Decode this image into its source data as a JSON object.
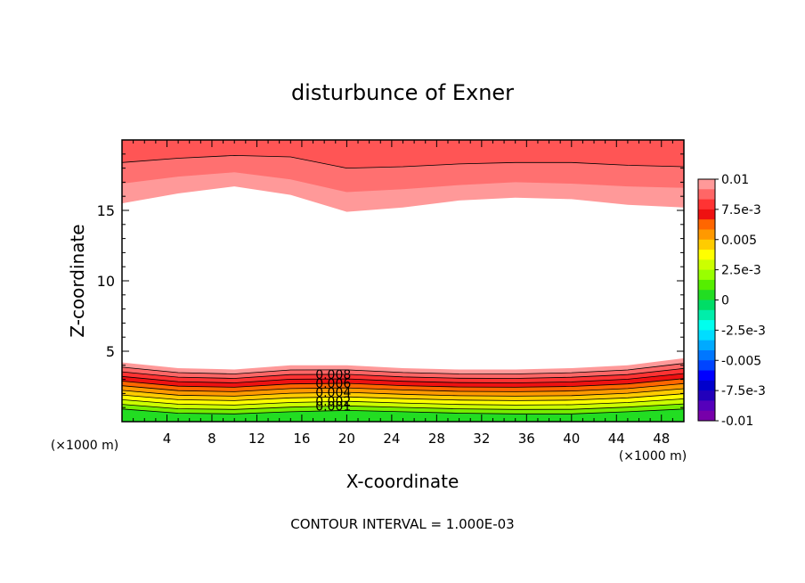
{
  "chart_data": {
    "type": "heatmap",
    "title": "disturbunce of Exner",
    "xlabel": "X-coordinate",
    "ylabel": "Z-coordinate",
    "x_unit": "(×1000 m)",
    "y_unit": "(×1000 m)",
    "xlim": [
      0,
      50
    ],
    "ylim": [
      0,
      20
    ],
    "x_ticks": [
      "4",
      "8",
      "12",
      "16",
      "20",
      "24",
      "28",
      "32",
      "36",
      "40",
      "44",
      "48"
    ],
    "y_ticks": [
      "5",
      "10",
      "15"
    ],
    "footer": "CONTOUR INTERVAL = 1.000E-03",
    "contour_labels": [
      "0.008",
      "0.006",
      "0.004",
      "0.002",
      "0.001"
    ],
    "colorbar": {
      "tick_labels": [
        "0.01",
        "7.5e-3",
        "0.005",
        "2.5e-3",
        "0",
        "-2.5e-3",
        "-0.005",
        "-7.5e-3",
        "-0.01"
      ],
      "colors": [
        "#ff9999",
        "#ff6666",
        "#ff3333",
        "#ee1111",
        "#ff6600",
        "#ff9900",
        "#ffcc00",
        "#ffff00",
        "#ccff00",
        "#99ff00",
        "#55ee00",
        "#22dd22",
        "#00dd66",
        "#00eeaa",
        "#00ffee",
        "#00ddff",
        "#00aaff",
        "#0077ff",
        "#0044ff",
        "#0000ff",
        "#0000cc",
        "#2200bb",
        "#5500bb",
        "#7700aa"
      ]
    },
    "upper_region": {
      "levels": [
        0.01,
        0.008,
        0.007
      ],
      "colors": [
        "#ff5555",
        "#ff7070",
        "#ff9999"
      ],
      "x": [
        0,
        5,
        10,
        15,
        20,
        25,
        30,
        35,
        40,
        45,
        50
      ],
      "level_heights": [
        [
          18.4,
          18.7,
          18.9,
          18.8,
          18.0,
          18.1,
          18.3,
          18.4,
          18.4,
          18.2,
          18.1
        ],
        [
          16.9,
          17.4,
          17.7,
          17.2,
          16.3,
          16.5,
          16.8,
          17.0,
          16.9,
          16.7,
          16.6
        ],
        [
          15.5,
          16.2,
          16.7,
          16.1,
          14.9,
          15.2,
          15.7,
          15.9,
          15.8,
          15.4,
          15.2
        ]
      ]
    },
    "lower_region": {
      "levels": [
        0.01,
        0.009,
        0.008,
        0.007,
        0.006,
        0.005,
        0.004,
        0.003,
        0.002,
        0.001,
        0.0
      ],
      "colors": [
        "#ff9999",
        "#ff6666",
        "#ff3333",
        "#ee1111",
        "#ff6600",
        "#ff9900",
        "#ffcc00",
        "#ffff00",
        "#ccff00",
        "#77ee00",
        "#22dd22"
      ],
      "x": [
        0,
        5,
        10,
        15,
        20,
        25,
        30,
        35,
        40,
        45,
        50
      ],
      "top_heights": [
        4.2,
        3.8,
        3.7,
        4.0,
        4.0,
        3.8,
        3.7,
        3.7,
        3.8,
        4.0,
        4.5
      ],
      "bottom_heights": [
        0.9,
        0.6,
        0.55,
        0.7,
        0.8,
        0.7,
        0.6,
        0.55,
        0.55,
        0.7,
        0.9
      ]
    }
  }
}
